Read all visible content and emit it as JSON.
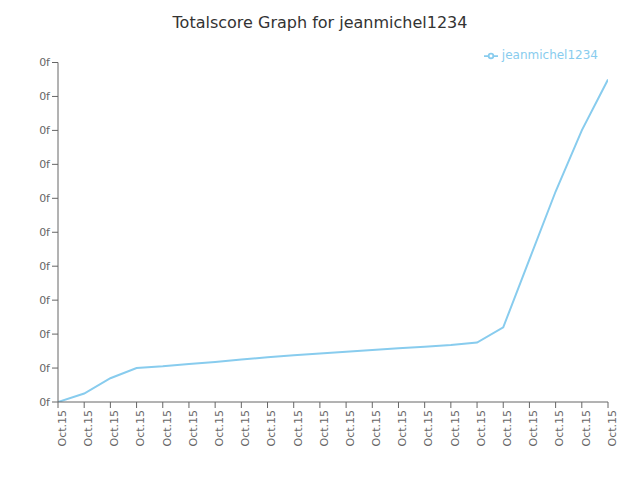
{
  "chart_data": {
    "type": "line",
    "title": "Totalscore Graph for jeanmichel1234",
    "x": [
      0,
      1,
      2,
      3,
      4,
      5,
      6,
      7,
      8,
      9,
      10,
      11,
      12,
      13,
      14,
      15,
      16,
      17,
      18,
      19,
      20,
      21
    ],
    "series": [
      {
        "name": "jeanmichel1234",
        "color": "#88CCEE",
        "values": [
          0,
          0.025,
          0.07,
          0.1,
          0.105,
          0.112,
          0.118,
          0.125,
          0.132,
          0.138,
          0.143,
          0.148,
          0.153,
          0.158,
          0.163,
          0.168,
          0.175,
          0.22,
          0.42,
          0.62,
          0.8,
          0.95
        ]
      }
    ],
    "xlim": [
      0,
      21
    ],
    "ylim": [
      0,
      1
    ],
    "xticks": [
      {
        "value": 0,
        "label": "Oct.15"
      },
      {
        "value": 1,
        "label": "Oct.15"
      },
      {
        "value": 2,
        "label": "Oct.15"
      },
      {
        "value": 3,
        "label": "Oct.15"
      },
      {
        "value": 4,
        "label": "Oct.15"
      },
      {
        "value": 5,
        "label": "Oct.15"
      },
      {
        "value": 6,
        "label": "Oct.15"
      },
      {
        "value": 7,
        "label": "Oct.15"
      },
      {
        "value": 8,
        "label": "Oct.15"
      },
      {
        "value": 9,
        "label": "Oct.15"
      },
      {
        "value": 10,
        "label": "Oct.15"
      },
      {
        "value": 11,
        "label": "Oct.15"
      },
      {
        "value": 12,
        "label": "Oct.15"
      },
      {
        "value": 13,
        "label": "Oct.15"
      },
      {
        "value": 14,
        "label": "Oct.15"
      },
      {
        "value": 15,
        "label": "Oct.15"
      },
      {
        "value": 16,
        "label": "Oct.15"
      },
      {
        "value": 17,
        "label": "Oct.15"
      },
      {
        "value": 18,
        "label": "Oct.15"
      },
      {
        "value": 19,
        "label": "Oct.15"
      },
      {
        "value": 20,
        "label": "Oct.15"
      },
      {
        "value": 21,
        "label": "Oct.15"
      }
    ],
    "yticks": [
      {
        "value": 0,
        "label": "0f"
      },
      {
        "value": 0.1,
        "label": "0f"
      },
      {
        "value": 0.2,
        "label": "0f"
      },
      {
        "value": 0.3,
        "label": "0f"
      },
      {
        "value": 0.4,
        "label": "0f"
      },
      {
        "value": 0.5,
        "label": "0f"
      },
      {
        "value": 0.6,
        "label": "0f"
      },
      {
        "value": 0.7,
        "label": "0f"
      },
      {
        "value": 0.8,
        "label": "0f"
      },
      {
        "value": 0.9,
        "label": "0f"
      },
      {
        "value": 1.0,
        "label": "0f"
      }
    ],
    "grid": false,
    "legend": "upper right"
  }
}
